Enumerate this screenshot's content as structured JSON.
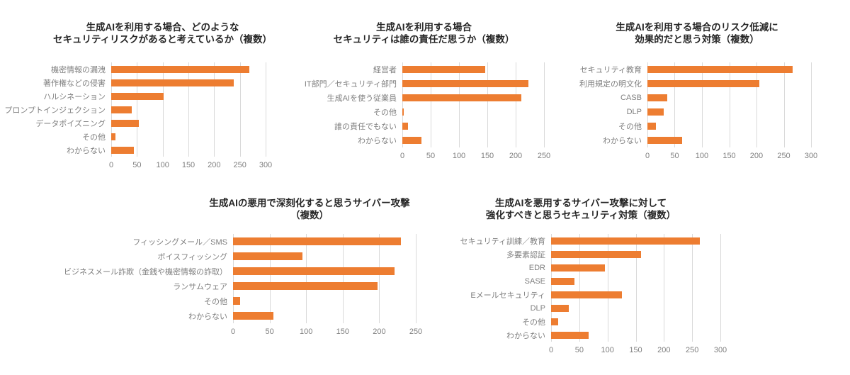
{
  "page": {
    "background": "#FFFFFF"
  },
  "colors": {
    "bar": "#ED7D31",
    "title": "#262626",
    "label": "#7F7F7F",
    "tick": "#7F7F7F",
    "gridline": "#D9D9D9"
  },
  "chart_data": [
    {
      "type": "bar",
      "orientation": "horizontal",
      "title": "生成AIを利用する場合、どのようなセキュリティリスクがあると考えているか（複数）",
      "title_lines": [
        "生成AIを利用する場合、どのような",
        "セキュリティリスクがあると考えているか（複数）"
      ],
      "categories": [
        "機密情報の漏洩",
        "著作権などの侵害",
        "ハルシネーション",
        "プロンプトインジェクション",
        "データポイズニング",
        "その他",
        "わからない"
      ],
      "values": [
        269,
        238,
        102,
        40,
        54,
        8,
        44
      ],
      "xlim": [
        0,
        300
      ],
      "xticks": [
        0,
        50,
        100,
        150,
        200,
        250,
        300
      ],
      "grid": true,
      "legend": "none"
    },
    {
      "type": "bar",
      "orientation": "horizontal",
      "title": "生成AIを利用する場合セキュリティは誰の責任だ思うか（複数）",
      "title_lines": [
        "生成AIを利用する場合",
        "セキュリティは誰の責任だ思うか（複数）"
      ],
      "categories": [
        "経営者",
        "IT部門／セキュリティ部門",
        "生成AIを使う従業員",
        "その他",
        "誰の責任でもない",
        "わからない"
      ],
      "values": [
        146,
        223,
        210,
        3,
        10,
        34
      ],
      "xlim": [
        0,
        250
      ],
      "xticks": [
        0,
        50,
        100,
        150,
        200,
        250
      ],
      "grid": true,
      "legend": "none"
    },
    {
      "type": "bar",
      "orientation": "horizontal",
      "title": "生成AIを利用する場合のリスク低減に効果的だと思う対策（複数）",
      "title_lines": [
        "生成AIを利用する場合のリスク低減に",
        "効果的だと思う対策（複数）"
      ],
      "categories": [
        "セキュリティ教育",
        "利用規定の明文化",
        "CASB",
        "DLP",
        "その他",
        "わからない"
      ],
      "values": [
        266,
        205,
        36,
        30,
        15,
        64
      ],
      "xlim": [
        0,
        300
      ],
      "xticks": [
        0,
        50,
        100,
        150,
        200,
        250,
        300
      ],
      "grid": true,
      "legend": "none"
    },
    {
      "type": "bar",
      "orientation": "horizontal",
      "title": "生成AIの悪用で深刻化すると思うサイバー攻撃（複数）",
      "title_lines": [
        "生成AIの悪用で深刻化すると思うサイバー攻撃",
        "（複数）"
      ],
      "categories": [
        "フィッシングメール／SMS",
        "ボイスフィッシング",
        "ビジネスメール詐欺（金銭や機密情報の詐取）",
        "ランサムウェア",
        "その他",
        "わからない"
      ],
      "values": [
        230,
        95,
        221,
        198,
        10,
        55
      ],
      "xlim": [
        0,
        250
      ],
      "xticks": [
        0,
        50,
        100,
        150,
        200,
        250
      ],
      "grid": true,
      "legend": "none"
    },
    {
      "type": "bar",
      "orientation": "horizontal",
      "title": "生成AIを悪用するサイバー攻撃に対して強化すべきと思うセキュリティ対策（複数）",
      "title_lines": [
        "生成AIを悪用するサイバー攻撃に対して",
        "強化すべきと思うセキュリティ対策（複数）"
      ],
      "categories": [
        "セキュリティ訓練／教育",
        "多要素認証",
        "EDR",
        "SASE",
        "Eメールセキュリティ",
        "DLP",
        "その他",
        "わからない"
      ],
      "values": [
        263,
        160,
        96,
        41,
        125,
        31,
        13,
        67
      ],
      "xlim": [
        0,
        300
      ],
      "xticks": [
        0,
        50,
        100,
        150,
        200,
        250,
        300
      ],
      "grid": true,
      "legend": "none"
    }
  ]
}
